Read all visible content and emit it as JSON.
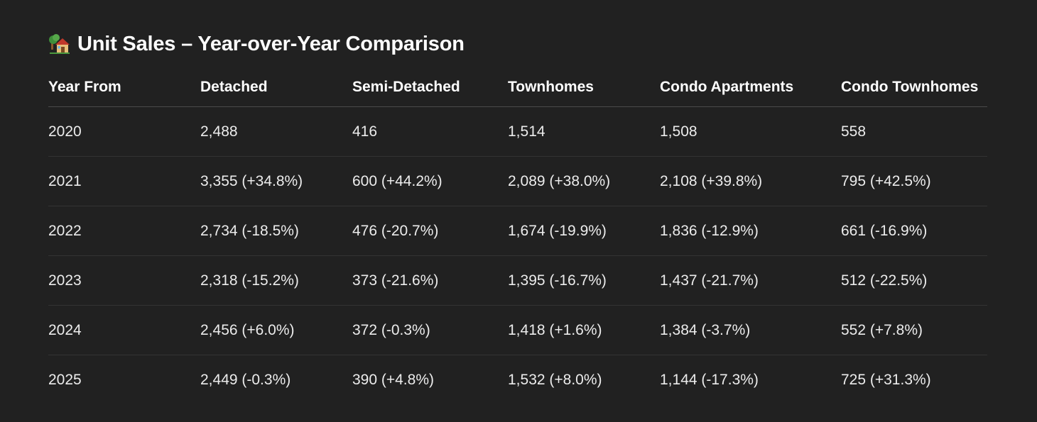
{
  "title": {
    "icon": "house-with-garden-icon",
    "text": "Unit Sales – Year-over-Year Comparison"
  },
  "table": {
    "columns": [
      "Year From",
      "Detached",
      "Semi-Detached",
      "Townhomes",
      "Condo Apartments",
      "Condo Townhomes"
    ],
    "rows": [
      [
        "2020",
        "2,488",
        "416",
        "1,514",
        "1,508",
        "558"
      ],
      [
        "2021",
        "3,355 (+34.8%)",
        "600 (+44.2%)",
        "2,089 (+38.0%)",
        "2,108 (+39.8%)",
        "795 (+42.5%)"
      ],
      [
        "2022",
        "2,734 (-18.5%)",
        "476 (-20.7%)",
        "1,674 (-19.9%)",
        "1,836 (-12.9%)",
        "661 (-16.9%)"
      ],
      [
        "2023",
        "2,318 (-15.2%)",
        "373 (-21.6%)",
        "1,395 (-16.7%)",
        "1,437 (-21.7%)",
        "512 (-22.5%)"
      ],
      [
        "2024",
        "2,456 (+6.0%)",
        "372 (-0.3%)",
        "1,418 (+1.6%)",
        "1,384 (-3.7%)",
        "552 (+7.8%)"
      ],
      [
        "2025",
        "2,449 (-0.3%)",
        "390 (+4.8%)",
        "1,532 (+8.0%)",
        "1,144 (-17.3%)",
        "725 (+31.3%)"
      ]
    ]
  },
  "colors": {
    "background": "#212121",
    "text": "#ececec",
    "header_text": "#ffffff",
    "divider": "#333333"
  }
}
